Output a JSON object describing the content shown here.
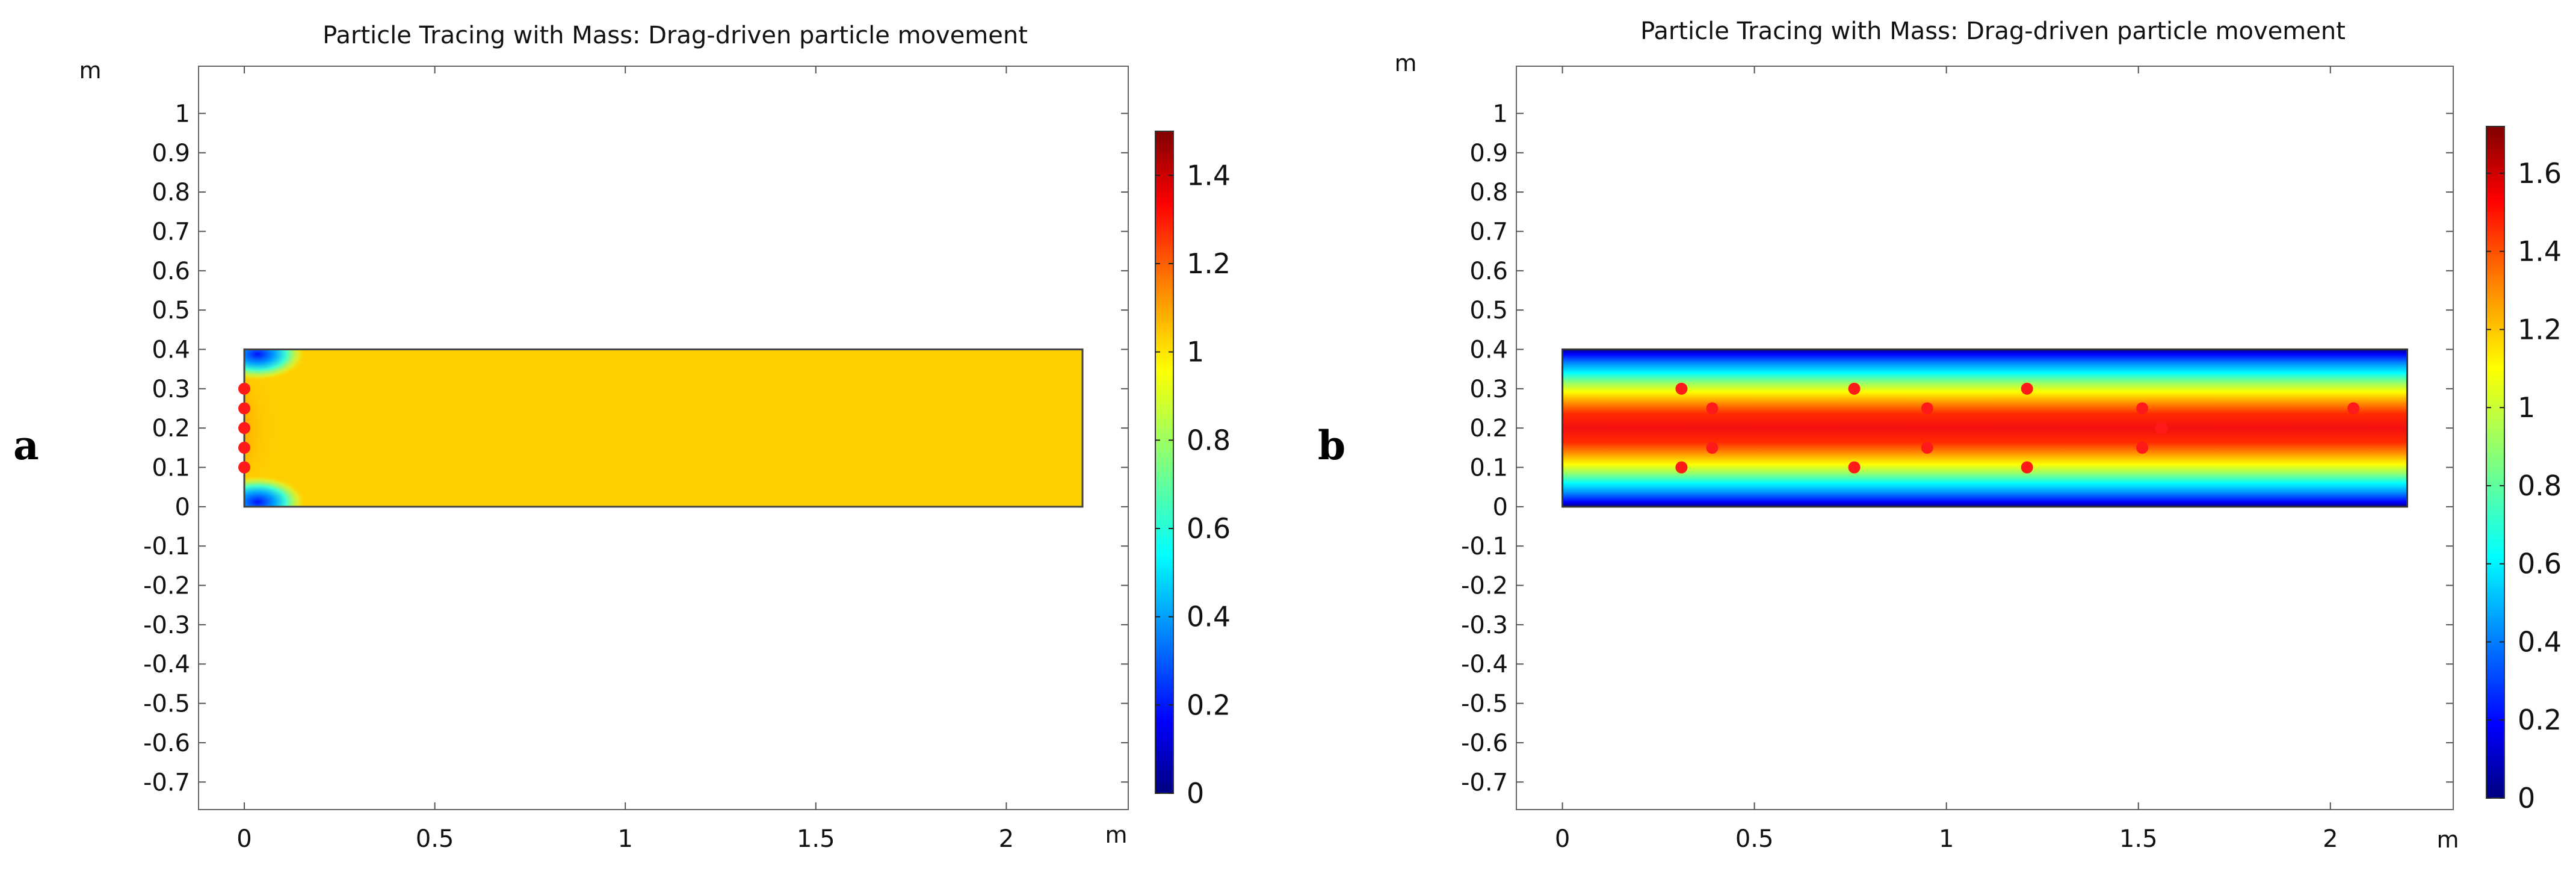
{
  "figure": {
    "panel_labels": [
      "a",
      "b"
    ]
  },
  "colors": {
    "jet": [
      "#00007f",
      "#0000ff",
      "#007fff",
      "#00ffff",
      "#7fff7f",
      "#ffff00",
      "#ff7f00",
      "#ff0000",
      "#7f0000"
    ],
    "yellow_field": "#ffd000",
    "particle": "#ff1a1a",
    "frame": "#666666"
  },
  "chart_data": [
    {
      "type": "heatmap",
      "title": "Particle Tracing with Mass: Drag-driven particle movement",
      "xlabel": "m",
      "ylabel": "m",
      "xlim": [
        -0.12,
        2.32
      ],
      "ylim": [
        -0.77,
        1.12
      ],
      "xticks": [
        0,
        0.5,
        1,
        1.5,
        2
      ],
      "xtick_labels": [
        "0",
        "0.5",
        "1",
        "1.5",
        "2"
      ],
      "yticks": [
        1,
        0.9,
        0.8,
        0.7,
        0.6,
        0.5,
        0.4,
        0.3,
        0.2,
        0.1,
        0,
        -0.1,
        -0.2,
        -0.3,
        -0.4,
        -0.5,
        -0.6,
        -0.7
      ],
      "ytick_labels": [
        "1",
        "0.9",
        "0.8",
        "0.7",
        "0.6",
        "0.5",
        "0.4",
        "0.3",
        "0.2",
        "0.1",
        "0",
        "-0.1",
        "-0.2",
        "-0.3",
        "-0.4",
        "-0.5",
        "-0.6",
        "-0.7"
      ],
      "domain": {
        "x": [
          0,
          2.2
        ],
        "y": [
          0,
          0.4
        ]
      },
      "field": "inlet_jet",
      "colorbar": {
        "range": [
          0,
          1.5
        ],
        "ticks": [
          1.4,
          1.2,
          1,
          0.8,
          0.6,
          0.4,
          0.2,
          0
        ],
        "tick_labels": [
          "1.4",
          "1.2",
          "1",
          "0.8",
          "0.6",
          "0.4",
          "0.2",
          "0"
        ]
      },
      "particles": [
        {
          "x": 0.0,
          "y": 0.3
        },
        {
          "x": 0.0,
          "y": 0.25
        },
        {
          "x": 0.0,
          "y": 0.2
        },
        {
          "x": 0.0,
          "y": 0.15
        },
        {
          "x": 0.0,
          "y": 0.1
        }
      ]
    },
    {
      "type": "heatmap",
      "title": "Particle Tracing with Mass: Drag-driven particle movement",
      "xlabel": "m",
      "ylabel": "m",
      "xlim": [
        -0.12,
        2.32
      ],
      "ylim": [
        -0.77,
        1.12
      ],
      "xticks": [
        0,
        0.5,
        1,
        1.5,
        2
      ],
      "xtick_labels": [
        "0",
        "0.5",
        "1",
        "1.5",
        "2"
      ],
      "yticks": [
        1,
        0.9,
        0.8,
        0.7,
        0.6,
        0.5,
        0.4,
        0.3,
        0.2,
        0.1,
        0,
        -0.1,
        -0.2,
        -0.3,
        -0.4,
        -0.5,
        -0.6,
        -0.7
      ],
      "ytick_labels": [
        "1",
        "0.9",
        "0.8",
        "0.7",
        "0.6",
        "0.5",
        "0.4",
        "0.3",
        "0.2",
        "0.1",
        "0",
        "-0.1",
        "-0.2",
        "-0.3",
        "-0.4",
        "-0.5",
        "-0.6",
        "-0.7"
      ],
      "domain": {
        "x": [
          0,
          2.2
        ],
        "y": [
          0,
          0.4
        ]
      },
      "field": "parabolic_profile",
      "colorbar": {
        "range": [
          0,
          1.72
        ],
        "ticks": [
          1.6,
          1.4,
          1.2,
          1,
          0.8,
          0.6,
          0.4,
          0.2,
          0
        ],
        "tick_labels": [
          "1.6",
          "1.4",
          "1.2",
          "1",
          "0.8",
          "0.6",
          "0.4",
          "0.2",
          "0"
        ]
      },
      "particles": [
        {
          "x": 0.31,
          "y": 0.3
        },
        {
          "x": 0.31,
          "y": 0.1
        },
        {
          "x": 0.39,
          "y": 0.25
        },
        {
          "x": 0.39,
          "y": 0.15
        },
        {
          "x": 0.76,
          "y": 0.3
        },
        {
          "x": 0.76,
          "y": 0.1
        },
        {
          "x": 0.95,
          "y": 0.25
        },
        {
          "x": 0.95,
          "y": 0.15
        },
        {
          "x": 1.21,
          "y": 0.3
        },
        {
          "x": 1.21,
          "y": 0.1
        },
        {
          "x": 1.51,
          "y": 0.25
        },
        {
          "x": 1.51,
          "y": 0.15
        },
        {
          "x": 1.56,
          "y": 0.2
        },
        {
          "x": 2.06,
          "y": 0.25
        }
      ]
    }
  ]
}
